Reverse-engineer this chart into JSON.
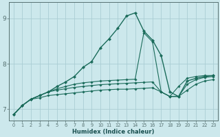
{
  "xlabel": "Humidex (Indice chaleur)",
  "bg_color": "#cce8ec",
  "grid_color": "#aacdd4",
  "line_color": "#1a6b5a",
  "xlim": [
    -0.5,
    23.5
  ],
  "ylim": [
    6.75,
    9.35
  ],
  "xticks": [
    0,
    1,
    2,
    3,
    4,
    5,
    6,
    7,
    8,
    9,
    10,
    11,
    12,
    13,
    14,
    15,
    16,
    17,
    18,
    19,
    20,
    21,
    22,
    23
  ],
  "yticks": [
    7,
    8,
    9
  ],
  "lines": [
    [
      6.88,
      7.08,
      7.22,
      7.3,
      7.38,
      7.5,
      7.6,
      7.72,
      7.92,
      8.05,
      8.35,
      8.55,
      8.78,
      9.05,
      9.12,
      8.72,
      8.52,
      8.18,
      7.38,
      7.28,
      7.62,
      7.68,
      7.72,
      7.74
    ],
    [
      6.88,
      7.08,
      7.22,
      7.3,
      7.38,
      7.45,
      7.5,
      7.55,
      7.58,
      7.6,
      7.62,
      7.63,
      7.64,
      7.65,
      7.66,
      8.68,
      8.48,
      7.38,
      7.28,
      7.5,
      7.68,
      7.72,
      7.74,
      7.74
    ],
    [
      6.88,
      7.08,
      7.22,
      7.3,
      7.38,
      7.42,
      7.45,
      7.48,
      7.5,
      7.52,
      7.54,
      7.55,
      7.56,
      7.57,
      7.58,
      7.59,
      7.6,
      7.38,
      7.28,
      7.28,
      7.55,
      7.65,
      7.7,
      7.72
    ],
    [
      6.88,
      7.08,
      7.22,
      7.25,
      7.3,
      7.32,
      7.34,
      7.36,
      7.38,
      7.4,
      7.42,
      7.43,
      7.44,
      7.44,
      7.45,
      7.46,
      7.47,
      7.38,
      7.28,
      7.28,
      7.42,
      7.55,
      7.62,
      7.65
    ]
  ]
}
